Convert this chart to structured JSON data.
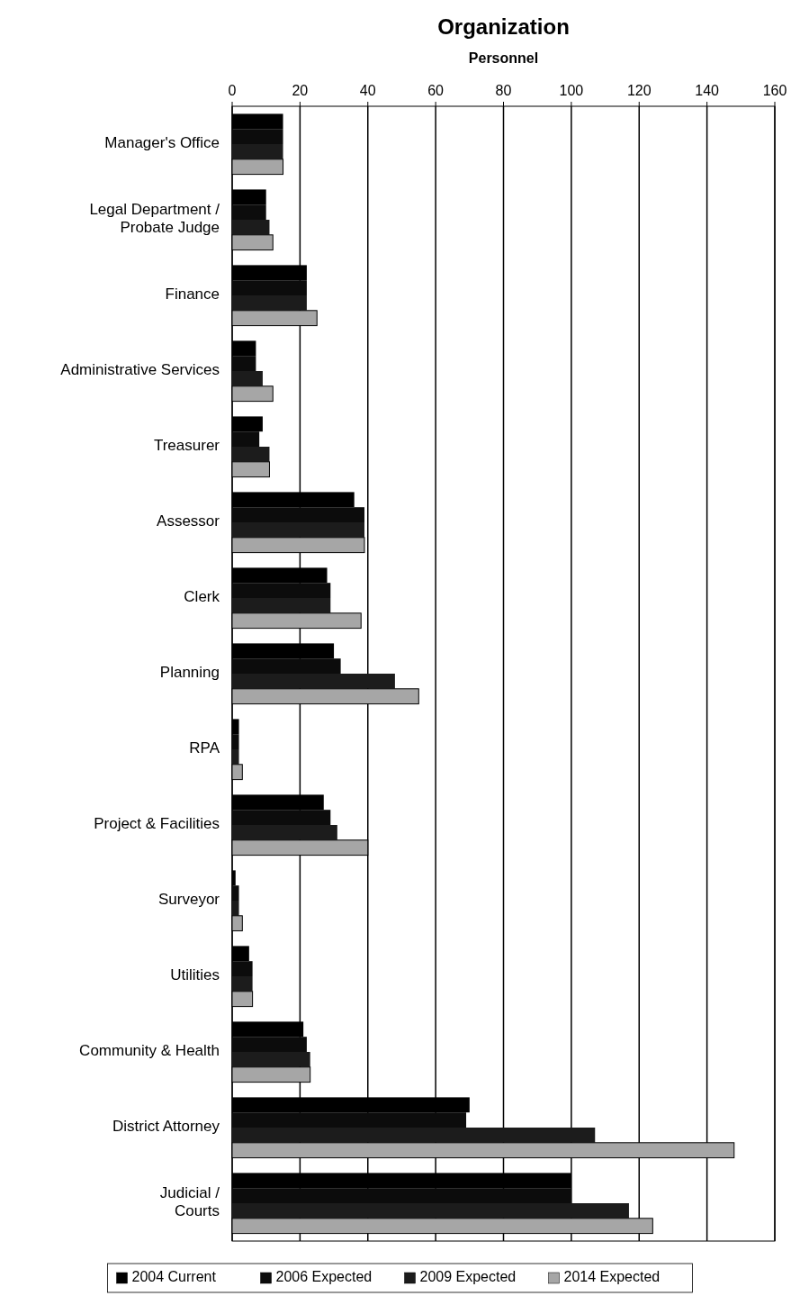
{
  "chart_data": {
    "type": "bar",
    "orientation": "horizontal",
    "title": "Organization",
    "xlabel": "Personnel",
    "categories": [
      "Manager's Office",
      "Legal Department / Probate Judge",
      "Finance",
      "Administrative Services",
      "Treasurer",
      "Assessor",
      "Clerk",
      "Planning",
      "RPA",
      "Project & Facilities",
      "Surveyor",
      "Utilities",
      "Community & Health",
      "District Attorney",
      "Judicial / Courts"
    ],
    "series": [
      {
        "name": "2004 Current",
        "color": "#000000",
        "values": [
          15,
          10,
          22,
          7,
          9,
          36,
          28,
          30,
          2,
          27,
          1,
          5,
          21,
          70,
          100
        ]
      },
      {
        "name": "2006 Expected",
        "color": "#0c0c0c",
        "values": [
          15,
          10,
          22,
          7,
          8,
          39,
          29,
          32,
          2,
          29,
          2,
          6,
          22,
          69,
          100
        ]
      },
      {
        "name": "2009 Expected",
        "color": "#1c1c1c",
        "values": [
          15,
          11,
          22,
          9,
          11,
          39,
          29,
          48,
          2,
          31,
          2,
          6,
          23,
          107,
          117
        ]
      },
      {
        "name": "2014 Expected",
        "color": "#a6a6a6",
        "values": [
          15,
          12,
          25,
          12,
          11,
          39,
          38,
          55,
          3,
          40,
          3,
          6,
          23,
          148,
          124
        ]
      }
    ],
    "xlim": [
      0,
      160
    ],
    "xticks": [
      0,
      20,
      40,
      60,
      80,
      100,
      120,
      140,
      160
    ],
    "grid": "x",
    "legend": "bottom"
  }
}
